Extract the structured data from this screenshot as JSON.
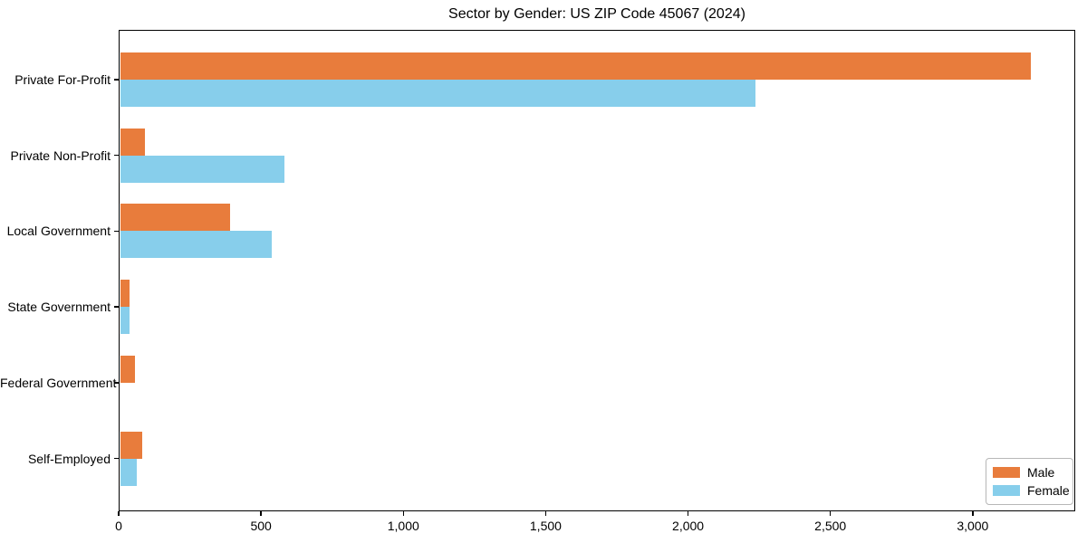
{
  "title": "Sector by Gender: US ZIP Code 45067 (2024)",
  "colors": {
    "male": "#e87c3c",
    "female": "#87ceeb",
    "axis": "#000000",
    "legend_border": "#b7b7b7",
    "background": "#ffffff"
  },
  "legend": {
    "position": "lower right",
    "entries": [
      {
        "label": "Male",
        "color": "#e87c3c"
      },
      {
        "label": "Female",
        "color": "#87ceeb"
      }
    ]
  },
  "chart_data": {
    "type": "bar",
    "orientation": "horizontal",
    "title": "Sector by Gender: US ZIP Code 45067 (2024)",
    "categories": [
      "Private For-Profit",
      "Private Non-Profit",
      "Local Government",
      "State Government",
      "Federal Government",
      "Self-Employed"
    ],
    "series": [
      {
        "name": "Male",
        "color": "#e87c3c",
        "values": [
          3200,
          89,
          386,
          32,
          51,
          78
        ]
      },
      {
        "name": "Female",
        "color": "#87ceeb",
        "values": [
          2232,
          577,
          534,
          34,
          0,
          60
        ]
      }
    ],
    "xlabel": "",
    "ylabel": "",
    "xlim": [
      0,
      3360
    ],
    "xticks": [
      {
        "value": 0,
        "label": "0"
      },
      {
        "value": 500,
        "label": "500"
      },
      {
        "value": 1000,
        "label": "1,000"
      },
      {
        "value": 1500,
        "label": "1,500"
      },
      {
        "value": 2000,
        "label": "2,000"
      },
      {
        "value": 2500,
        "label": "2,500"
      },
      {
        "value": 3000,
        "label": "3,000"
      }
    ],
    "grid": false,
    "legend_position": "lower right"
  }
}
